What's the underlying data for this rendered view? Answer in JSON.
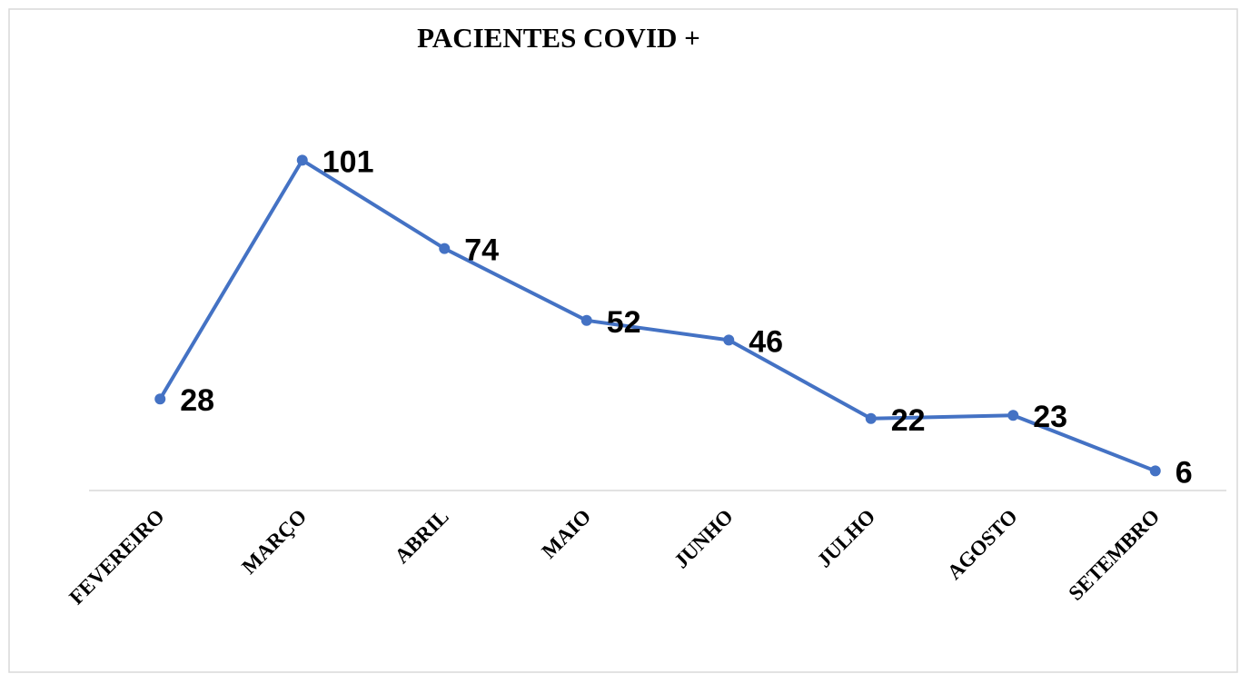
{
  "chart_data": {
    "type": "line",
    "title": "PACIENTES COVID +",
    "categories": [
      "FEVEREIRO",
      "MARÇO",
      "ABRIL",
      "MAIO",
      "JUNHO",
      "JULHO",
      "AGOSTO",
      "SETEMBRO"
    ],
    "values": [
      28,
      101,
      74,
      52,
      46,
      22,
      23,
      6
    ],
    "color": "#4472c4",
    "ylim": [
      0,
      120
    ],
    "grid": false
  }
}
